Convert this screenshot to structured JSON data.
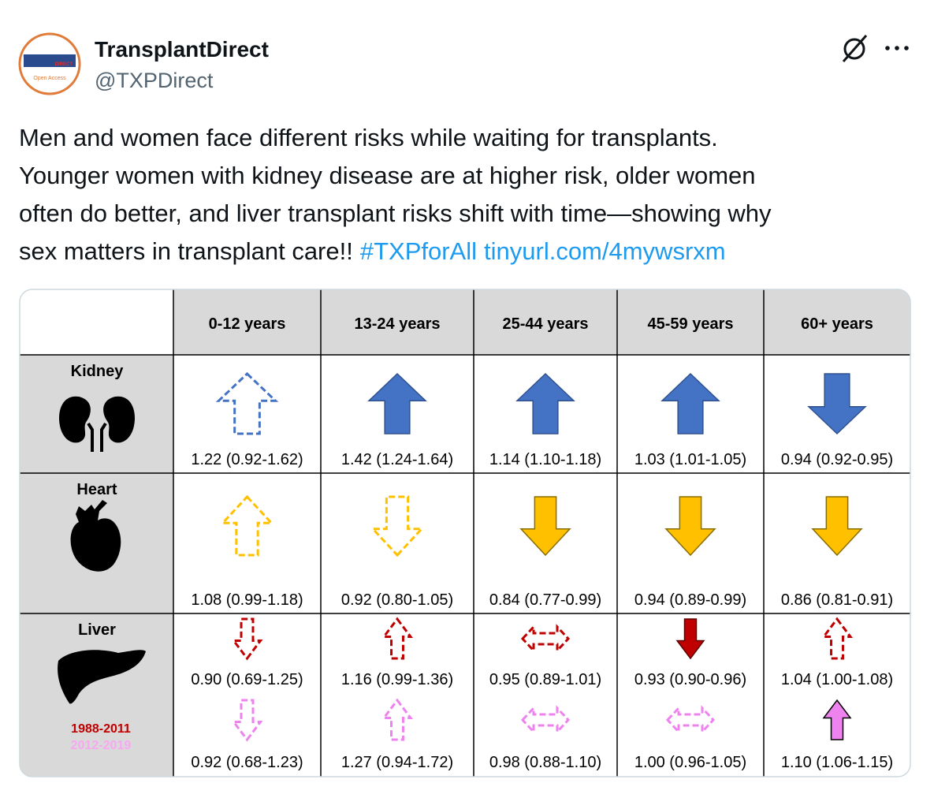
{
  "header": {
    "name": "TransplantDirect",
    "handle": "@TXPDirect",
    "avatar_text": [
      "Transplantation",
      "DIRECT",
      "Open Access"
    ]
  },
  "post": {
    "lines": [
      "Men and women face different risks while waiting for transplants.",
      "Younger women with kidney disease are at higher risk, older women",
      "often do better, and liver transplant risks shift with time—showing why",
      "sex matters in transplant care!!"
    ],
    "hashtag": "#TXPforAll",
    "link": "tinyurl.com/4mywsrxm"
  },
  "table": {
    "columns": [
      "0-12 years",
      "13-24 years",
      "25-44 years",
      "45-59 years",
      "60+ years"
    ],
    "rows": [
      {
        "label": "Kidney",
        "values": [
          "1.22 (0.92-1.62)",
          "1.42 (1.24-1.64)",
          "1.14 (1.10-1.18)",
          "1.03 (1.01-1.05)",
          "0.94 (0.92-0.95)"
        ]
      },
      {
        "label": "Heart",
        "values": [
          "1.08 (0.99-1.18)",
          "0.92 (0.80-1.05)",
          "0.84 (0.77-0.99)",
          "0.94 (0.89-0.99)",
          "0.86 (0.81-0.91)"
        ]
      },
      {
        "label": "Liver",
        "periods": [
          {
            "name": "1988-2011",
            "values": [
              "0.90 (0.69-1.25)",
              "1.16 (0.99-1.36)",
              "0.95 (0.89-1.01)",
              "0.93 (0.90-0.96)",
              "1.04 (1.00-1.08)"
            ]
          },
          {
            "name": "2012-2019",
            "values": [
              "0.92 (0.68-1.23)",
              "1.27 (0.94-1.72)",
              "0.98 (0.88-1.10)",
              "1.00 (0.96-1.05)",
              "1.10 (1.06-1.15)"
            ]
          }
        ]
      }
    ]
  }
}
